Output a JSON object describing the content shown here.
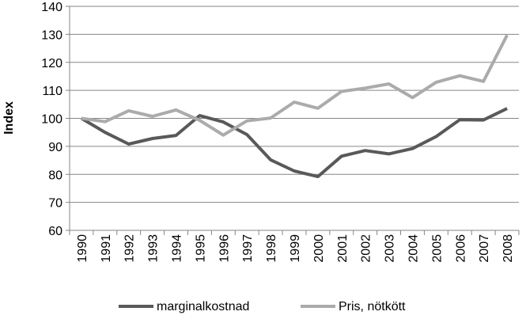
{
  "chart_data": {
    "type": "line",
    "title": "",
    "xlabel": "",
    "ylabel": "Index",
    "x": [
      "1990",
      "1991",
      "1992",
      "1993",
      "1994",
      "1995",
      "1996",
      "1997",
      "1998",
      "1999",
      "2000",
      "2001",
      "2002",
      "2003",
      "2004",
      "2005",
      "2006",
      "2007",
      "2008"
    ],
    "ylim": [
      60,
      140
    ],
    "yticks": [
      60,
      70,
      80,
      90,
      100,
      110,
      120,
      130,
      140
    ],
    "grid": true,
    "legend_position": "bottom",
    "series": [
      {
        "name": "marginalkostnad",
        "color": "#595959",
        "values": [
          100,
          95,
          90.8,
          92.8,
          93.9,
          101,
          98.7,
          94.2,
          85.2,
          81.2,
          79.2,
          86.5,
          88.5,
          87.3,
          89.2,
          93.5,
          99.5,
          99.4,
          103.5
        ]
      },
      {
        "name": "Pris, nötkött",
        "color": "#ababab",
        "values": [
          100,
          98.8,
          102.7,
          100.7,
          103,
          99.3,
          94,
          99.1,
          100.1,
          105.8,
          103.6,
          109.6,
          110.8,
          112.3,
          107.4,
          112.9,
          115.2,
          113.2,
          129.7
        ]
      }
    ]
  }
}
